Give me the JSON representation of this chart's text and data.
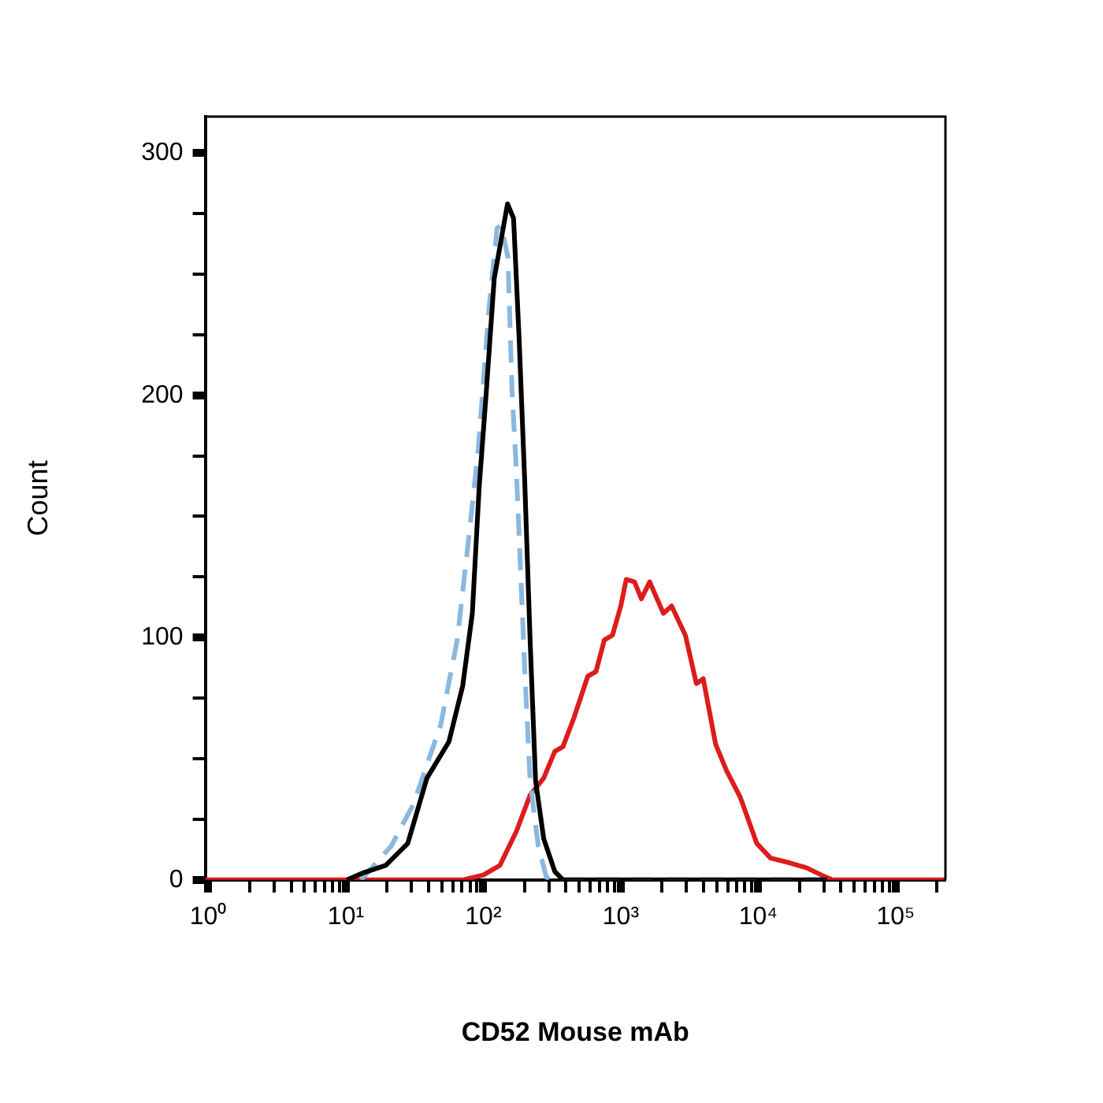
{
  "chart_data": {
    "type": "line",
    "xlabel": "CD52 Mouse mAb",
    "ylabel": "Count",
    "log": "x",
    "legend": false,
    "grid": false,
    "xlim": [
      0.95,
      230000
    ],
    "ylim": [
      0,
      315
    ],
    "xticks": [
      {
        "value": 1,
        "label": "10⁰"
      },
      {
        "value": 2,
        "label": null
      },
      {
        "value": 3,
        "label": null
      },
      {
        "value": 4,
        "label": null
      },
      {
        "value": 5,
        "label": null
      },
      {
        "value": 6,
        "label": null
      },
      {
        "value": 7,
        "label": null
      },
      {
        "value": 8,
        "label": null
      },
      {
        "value": 9,
        "label": null
      },
      {
        "value": 10,
        "label": "10¹"
      },
      {
        "value": 20,
        "label": null
      },
      {
        "value": 30,
        "label": null
      },
      {
        "value": 40,
        "label": null
      },
      {
        "value": 50,
        "label": null
      },
      {
        "value": 60,
        "label": null
      },
      {
        "value": 70,
        "label": null
      },
      {
        "value": 80,
        "label": null
      },
      {
        "value": 90,
        "label": null
      },
      {
        "value": 100,
        "label": "10²"
      },
      {
        "value": 200,
        "label": null
      },
      {
        "value": 300,
        "label": null
      },
      {
        "value": 400,
        "label": null
      },
      {
        "value": 500,
        "label": null
      },
      {
        "value": 600,
        "label": null
      },
      {
        "value": 700,
        "label": null
      },
      {
        "value": 800,
        "label": null
      },
      {
        "value": 900,
        "label": null
      },
      {
        "value": 1000,
        "label": "10³"
      },
      {
        "value": 2000,
        "label": null
      },
      {
        "value": 3000,
        "label": null
      },
      {
        "value": 4000,
        "label": null
      },
      {
        "value": 5000,
        "label": null
      },
      {
        "value": 6000,
        "label": null
      },
      {
        "value": 7000,
        "label": null
      },
      {
        "value": 8000,
        "label": null
      },
      {
        "value": 9000,
        "label": null
      },
      {
        "value": 10000,
        "label": "10⁴"
      },
      {
        "value": 20000,
        "label": null
      },
      {
        "value": 30000,
        "label": null
      },
      {
        "value": 40000,
        "label": null
      },
      {
        "value": 50000,
        "label": null
      },
      {
        "value": 60000,
        "label": null
      },
      {
        "value": 70000,
        "label": null
      },
      {
        "value": 80000,
        "label": null
      },
      {
        "value": 90000,
        "label": null
      },
      {
        "value": 100000,
        "label": "10⁵"
      },
      {
        "value": 200000,
        "label": null
      }
    ],
    "yticks": [
      0,
      {
        "value": 25,
        "label": null
      },
      {
        "value": 50,
        "label": null
      },
      {
        "value": 75,
        "label": null
      },
      100,
      {
        "value": 125,
        "label": null
      },
      {
        "value": 150,
        "label": null
      },
      {
        "value": 175,
        "label": null
      },
      200,
      {
        "value": 225,
        "label": null
      },
      {
        "value": 250,
        "label": null
      },
      {
        "value": 275,
        "label": null
      },
      300
    ],
    "series": [
      {
        "color": "#000000",
        "line_style": "solid",
        "x": [
          10.2,
          13.5,
          19.5,
          28.2,
          38.9,
          56.2,
          70.8,
          83.2,
          93.3,
          105,
          120,
          150,
          166,
          182,
          200,
          219,
          240,
          275,
          331,
          380,
          31600
        ],
        "values": [
          0,
          3,
          6,
          15,
          42,
          57,
          80,
          110,
          162,
          201,
          248,
          279,
          273,
          224,
          165,
          99,
          41,
          17,
          3.5,
          0,
          0
        ]
      },
      {
        "color": "#8ab8e0",
        "line_style": "dashed",
        "x": [
          12.9,
          21.4,
          30.9,
          49,
          64.6,
          75.9,
          92,
          110,
          126,
          135,
          151,
          162,
          174,
          200,
          219,
          251,
          288,
          331,
          31600
        ],
        "values": [
          0,
          14,
          31,
          64,
          99,
          134,
          178,
          236,
          269,
          270,
          257,
          201,
          169,
          87,
          41,
          14,
          1,
          0,
          0
        ]
      },
      {
        "color": "#dd1c1c",
        "line_style": "solid",
        "x": [
          0.95,
          70.8,
          100,
          132,
          174,
          219,
          275,
          331,
          380,
          457,
          575,
          661,
          759,
          871,
          1000,
          1096,
          1259,
          1413,
          1622,
          2042,
          2344,
          2951,
          3548,
          3981,
          4898,
          5888,
          7413,
          9772,
          12300,
          17000,
          22400,
          28800,
          34700,
          230000
        ],
        "values": [
          0,
          0,
          2,
          6,
          20,
          35,
          42,
          53,
          55,
          67,
          84,
          86,
          99,
          101,
          113,
          124,
          123,
          116,
          123,
          110,
          113,
          101,
          81,
          83,
          56,
          45,
          34,
          15,
          9,
          7,
          5,
          2,
          0,
          0
        ]
      }
    ]
  }
}
